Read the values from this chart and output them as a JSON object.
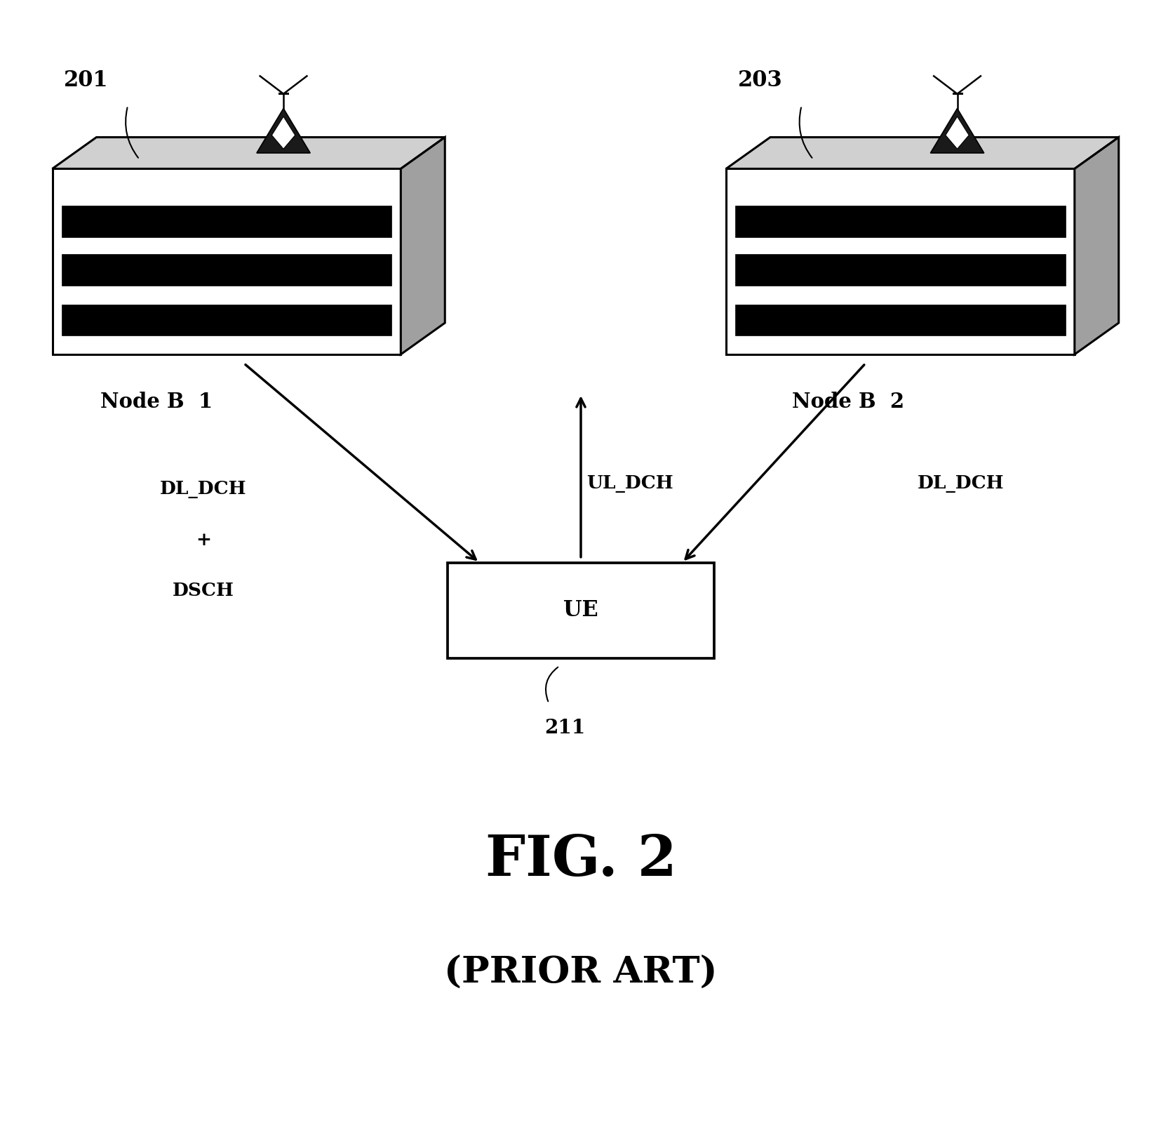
{
  "bg_color": "#ffffff",
  "fig_width": 16.56,
  "fig_height": 16.03,
  "node_b1_label": "201",
  "node_b2_label": "203",
  "node_b1_text": "Node B  1",
  "node_b2_text": "Node B  2",
  "ue_label": "211",
  "ue_text": "UE",
  "dl_dch_dsch_line1": "DL_DCH",
  "dl_dch_dsch_line2": "+",
  "dl_dch_dsch_line3": "DSCH",
  "ul_dch_text": "UL_DCH",
  "dl_dch_text": "DL_DCH",
  "fig_label": "FIG. 2",
  "prior_art_label": "(PRIOR ART)"
}
